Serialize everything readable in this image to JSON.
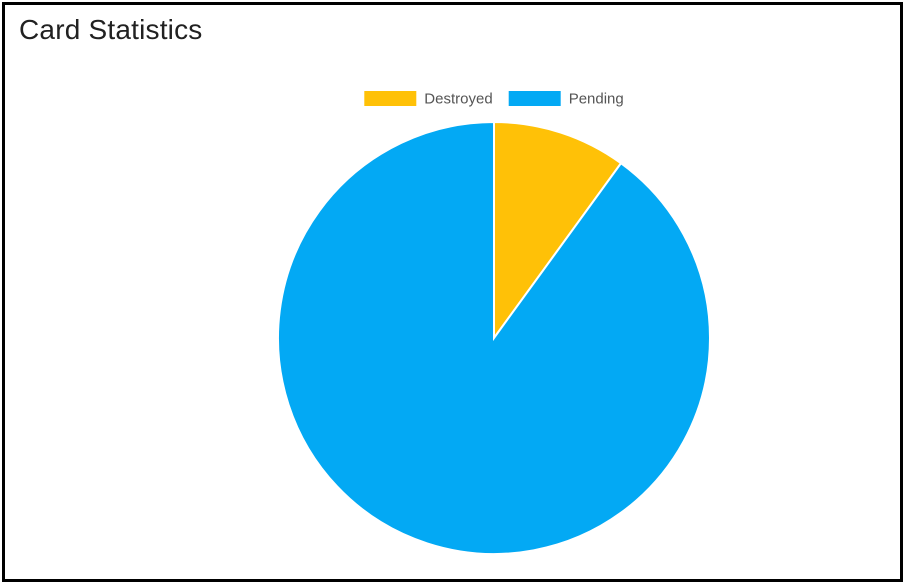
{
  "card": {
    "title": "Card Statistics"
  },
  "chart_data": {
    "type": "pie",
    "title": "",
    "legend_position": "top",
    "slices": [
      {
        "label": "Destroyed",
        "value": 10,
        "color": "#FFC107"
      },
      {
        "label": "Pending",
        "value": 90,
        "color": "#03A9F4"
      }
    ]
  }
}
